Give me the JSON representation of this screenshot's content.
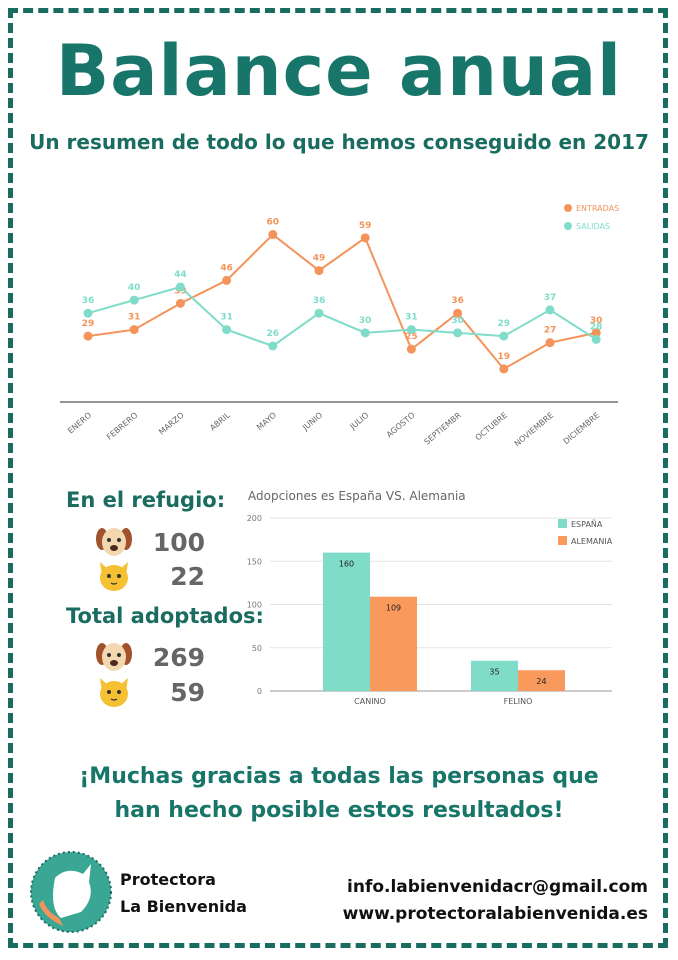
{
  "title": "Balance anual",
  "subtitle": "Un resumen de todo lo que hemos conseguido en 2017",
  "chart_data": [
    {
      "type": "line",
      "title": "",
      "categories": [
        "ENERO",
        "FEBRERO",
        "MARZO",
        "ABRIL",
        "MAYO",
        "JUNIO",
        "JULIO",
        "AGOSTO",
        "SEPTIEMBR",
        "OCTUBRE",
        "NOVIEMBRE",
        "DICIEMBRE"
      ],
      "series": [
        {
          "name": "ENTRADAS",
          "color": "#f4935a",
          "values": [
            29,
            31,
            39,
            46,
            60,
            49,
            59,
            25,
            36,
            19,
            27,
            30
          ]
        },
        {
          "name": "SALIDAS",
          "color": "#7fdcc9",
          "values": [
            36,
            40,
            44,
            31,
            26,
            36,
            30,
            31,
            30,
            29,
            37,
            28
          ]
        }
      ],
      "legend": "top-right"
    },
    {
      "type": "bar",
      "title": "Adopciones es España VS. Alemania",
      "categories": [
        "CANINO",
        "FELINO"
      ],
      "series": [
        {
          "name": "ESPAÑA",
          "color": "#7fdcc9",
          "values": [
            160,
            35
          ]
        },
        {
          "name": "ALEMANIA",
          "color": "#f99a5c",
          "values": [
            109,
            24
          ]
        }
      ],
      "ylim": [
        0,
        200
      ],
      "yticks": [
        0,
        50,
        100,
        150,
        200
      ],
      "legend": "top-right"
    }
  ],
  "stats": {
    "refugio_label": "En el refugio:",
    "refugio": [
      {
        "icon": "dog-icon",
        "value": "100"
      },
      {
        "icon": "cat-icon",
        "value": "22"
      }
    ],
    "adoptados_label": "Total adoptados:",
    "adoptados": [
      {
        "icon": "dog-icon",
        "value": "269"
      },
      {
        "icon": "cat-icon",
        "value": "59"
      }
    ]
  },
  "thanks": {
    "line1": "¡Muchas gracias a todas las personas que",
    "line2": "han hecho posible estos resultados!"
  },
  "footer": {
    "org_line1": "Protectora",
    "org_line2": "La Bienvenida",
    "email": "info.labienvenidacr@gmail.com",
    "web": "www.protectoralabienvenida.es"
  }
}
